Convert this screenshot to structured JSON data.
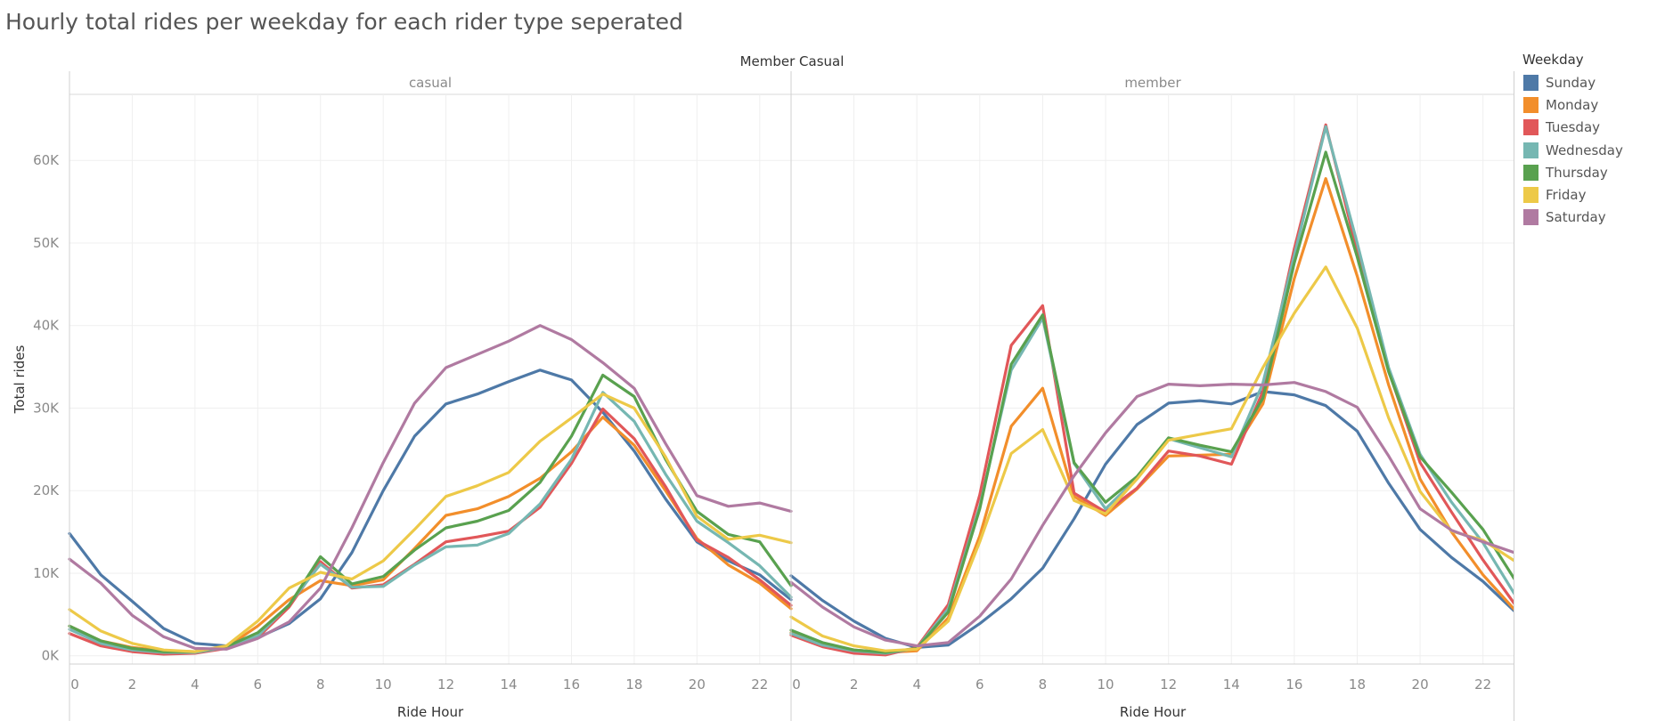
{
  "title": "Hourly total rides per weekday for each rider type seperated",
  "chart_data": {
    "type": "line",
    "title": "Hourly total rides per weekday for each rider type seperated",
    "column_header": "Member Casual",
    "xlabel": "Ride Hour",
    "ylabel": "Total rides",
    "ylim": [
      -1000,
      68000
    ],
    "xlim": [
      0,
      23
    ],
    "x_ticks": [
      0,
      2,
      4,
      6,
      8,
      10,
      12,
      14,
      16,
      18,
      20,
      22
    ],
    "x_tick_labels": [
      "0",
      "2",
      "4",
      "6",
      "8",
      "10",
      "12",
      "14",
      "16",
      "18",
      "20",
      "22"
    ],
    "y_ticks": [
      0,
      10000,
      20000,
      30000,
      40000,
      50000,
      60000
    ],
    "y_tick_labels": [
      "0K",
      "10K",
      "20K",
      "30K",
      "40K",
      "50K",
      "60K"
    ],
    "grid": true,
    "legend": {
      "title": "Weekday",
      "placement": "right",
      "entries": [
        "Sunday",
        "Monday",
        "Tuesday",
        "Wednesday",
        "Thursday",
        "Friday",
        "Saturday"
      ]
    },
    "colors": {
      "Sunday": "#4e79a7",
      "Monday": "#f28e2b",
      "Tuesday": "#e15759",
      "Wednesday": "#76b7b2",
      "Thursday": "#59a14f",
      "Friday": "#edc948",
      "Saturday": "#b07aa1"
    },
    "x": [
      0,
      1,
      2,
      3,
      4,
      5,
      6,
      7,
      8,
      9,
      10,
      11,
      12,
      13,
      14,
      15,
      16,
      17,
      18,
      19,
      20,
      21,
      22,
      23
    ],
    "facets": [
      {
        "label": "casual",
        "series": [
          {
            "name": "Sunday",
            "values": [
              14800,
              9800,
              6600,
              3300,
              1500,
              1200,
              2200,
              3900,
              6900,
              12500,
              20000,
              26600,
              30500,
              31700,
              33200,
              34600,
              33400,
              29500,
              24800,
              19000,
              13800,
              11500,
              9800,
              6800
            ]
          },
          {
            "name": "Monday",
            "values": [
              3600,
              1800,
              1000,
              600,
              500,
              1000,
              3600,
              6800,
              9100,
              8500,
              9200,
              13000,
              17000,
              17800,
              19300,
              21500,
              24700,
              28900,
              25500,
              20000,
              14200,
              11000,
              8800,
              5700
            ]
          },
          {
            "name": "Tuesday",
            "values": [
              2700,
              1200,
              500,
              200,
              300,
              900,
              2200,
              5900,
              11400,
              8200,
              8600,
              11100,
              13800,
              14400,
              15100,
              18000,
              23300,
              29900,
              26300,
              20500,
              14000,
              11900,
              9200,
              6100
            ]
          },
          {
            "name": "Wednesday",
            "values": [
              3200,
              1500,
              700,
              400,
              400,
              1000,
              2400,
              6200,
              11100,
              8300,
              8400,
              11000,
              13200,
              13400,
              14800,
              18400,
              23800,
              31900,
              28400,
              22000,
              16300,
              13700,
              10900,
              7100
            ]
          },
          {
            "name": "Thursday",
            "values": [
              3600,
              1800,
              900,
              500,
              500,
              1100,
              2800,
              6100,
              12000,
              8700,
              9600,
              12800,
              15500,
              16300,
              17600,
              21000,
              26600,
              34000,
              31400,
              23800,
              17500,
              14700,
              13800,
              8500
            ]
          },
          {
            "name": "Friday",
            "values": [
              5600,
              3000,
              1500,
              700,
              500,
              1200,
              4200,
              8200,
              10100,
              9300,
              11500,
              15300,
              19300,
              20600,
              22200,
              26000,
              28800,
              31700,
              30000,
              24100,
              16900,
              14100,
              14600,
              13700
            ]
          },
          {
            "name": "Saturday",
            "values": [
              11700,
              8800,
              4900,
              2300,
              900,
              800,
              2100,
              4100,
              8200,
              15500,
              23400,
              30600,
              34900,
              36500,
              38100,
              40000,
              38300,
              35500,
              32400,
              25700,
              19400,
              18100,
              18500,
              17500
            ]
          }
        ]
      },
      {
        "label": "member",
        "series": [
          {
            "name": "Sunday",
            "values": [
              9700,
              6700,
              4200,
              2100,
              1000,
              1300,
              3900,
              6900,
              10600,
              16600,
              23200,
              28000,
              30600,
              30900,
              30500,
              32000,
              31600,
              30300,
              27200,
              20900,
              15300,
              11900,
              9000,
              5400
            ]
          },
          {
            "name": "Monday",
            "values": [
              2800,
              1400,
              700,
              400,
              600,
              4600,
              14500,
              27800,
              32400,
              19300,
              17000,
              20200,
              24200,
              24300,
              24400,
              30500,
              45700,
              57800,
              46000,
              32800,
              21400,
              15000,
              9800,
              5600
            ]
          },
          {
            "name": "Tuesday",
            "values": [
              2500,
              1100,
              300,
              100,
              1000,
              6200,
              19500,
              37600,
              42400,
              19700,
              17400,
              20300,
              24800,
              24200,
              23200,
              32000,
              49300,
              64300,
              49000,
              34500,
              23400,
              17400,
              11600,
              6300
            ]
          },
          {
            "name": "Wednesday",
            "values": [
              2700,
              1300,
              600,
              300,
              900,
              5700,
              18100,
              34600,
              40900,
              23300,
              17800,
              21500,
              26300,
              25200,
              24100,
              33000,
              48500,
              64100,
              50000,
              34900,
              24400,
              18600,
              13700,
              7500
            ]
          },
          {
            "name": "Thursday",
            "values": [
              3100,
              1600,
              700,
              400,
              900,
              5300,
              17800,
              35300,
              41300,
              23400,
              18600,
              21700,
              26400,
              25500,
              24700,
              31200,
              47600,
              61000,
              48300,
              34400,
              24100,
              19800,
              15300,
              9300
            ]
          },
          {
            "name": "Friday",
            "values": [
              4700,
              2400,
              1200,
              600,
              800,
              4200,
              13800,
              24500,
              27400,
              18800,
              17200,
              21400,
              26100,
              26800,
              27500,
              34900,
              41500,
              47100,
              39700,
              28800,
              19900,
              15100,
              14000,
              11500
            ]
          },
          {
            "name": "Saturday",
            "values": [
              8900,
              5900,
              3500,
              1900,
              1200,
              1600,
              4800,
              9300,
              15800,
              21800,
              27000,
              31400,
              32900,
              32700,
              32900,
              32800,
              33100,
              32000,
              30100,
              24200,
              17800,
              15200,
              13800,
              12500
            ]
          }
        ]
      }
    ]
  }
}
